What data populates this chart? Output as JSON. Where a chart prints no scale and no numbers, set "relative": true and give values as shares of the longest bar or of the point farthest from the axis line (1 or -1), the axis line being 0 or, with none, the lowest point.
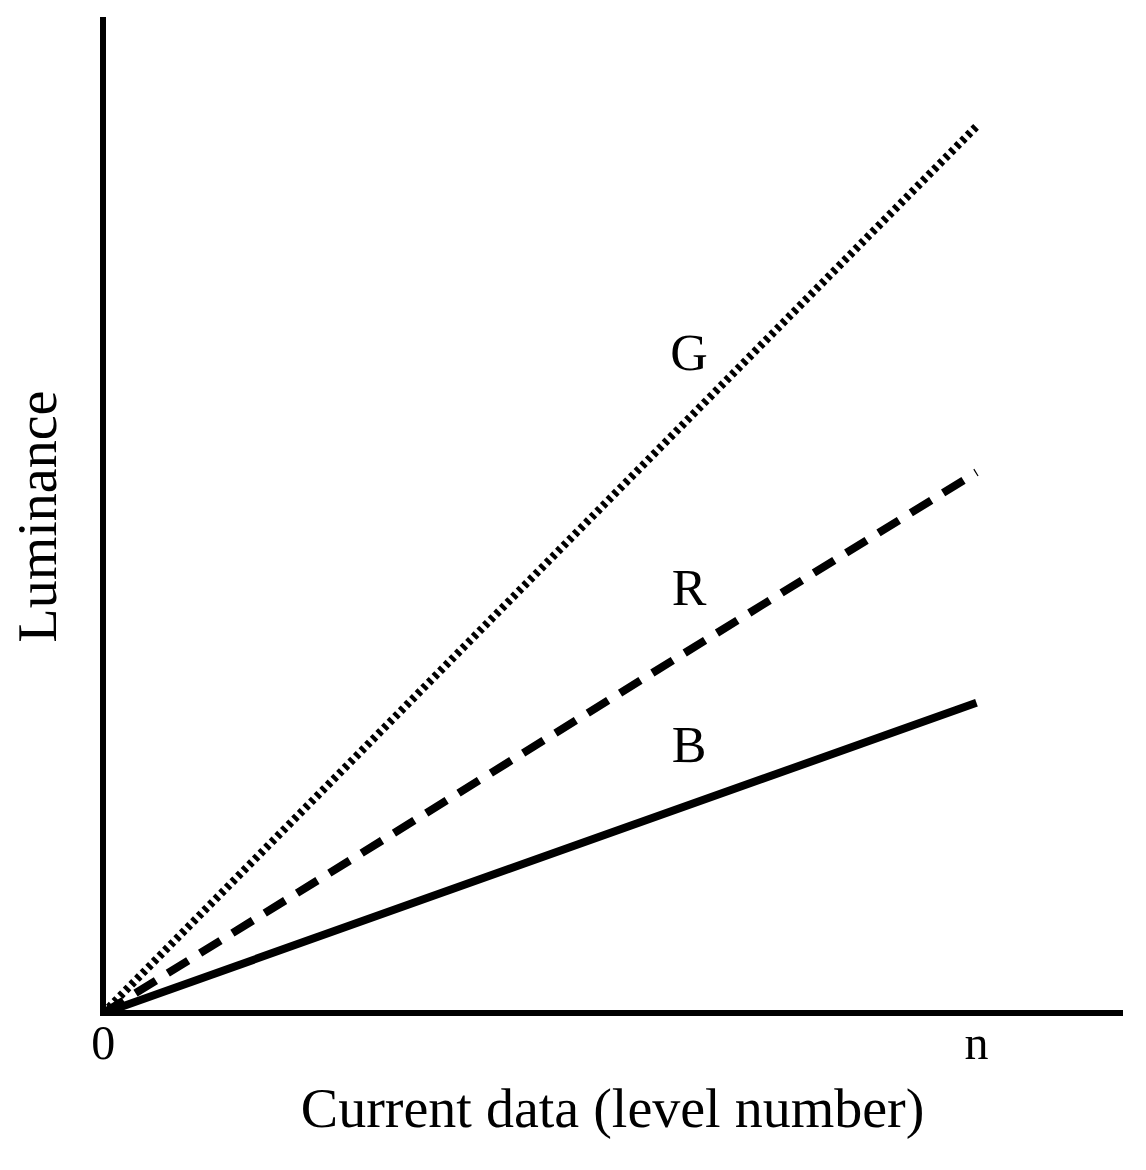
{
  "chart_data": {
    "type": "line",
    "relative": true,
    "xlabel": "Current data (level number)",
    "ylabel": "Luminance",
    "categories": [
      "0",
      null,
      null,
      null,
      null,
      null,
      "n",
      null
    ],
    "grid": false,
    "legend": false,
    "marker": "none",
    "series": [
      {
        "name": "G",
        "color": "#000000",
        "line_style": "dotted",
        "values": [
          0,
          null,
          null,
          null,
          null,
          null,
          1,
          null
        ]
      },
      {
        "name": "R",
        "color": "#000000",
        "line_style": "dashed",
        "values": [
          0,
          null,
          null,
          null,
          null,
          null,
          0.61,
          null
        ]
      },
      {
        "name": "B",
        "color": "#000000",
        "line_style": "solid",
        "values": [
          0,
          null,
          null,
          null,
          null,
          null,
          0.35,
          null
        ]
      }
    ]
  }
}
